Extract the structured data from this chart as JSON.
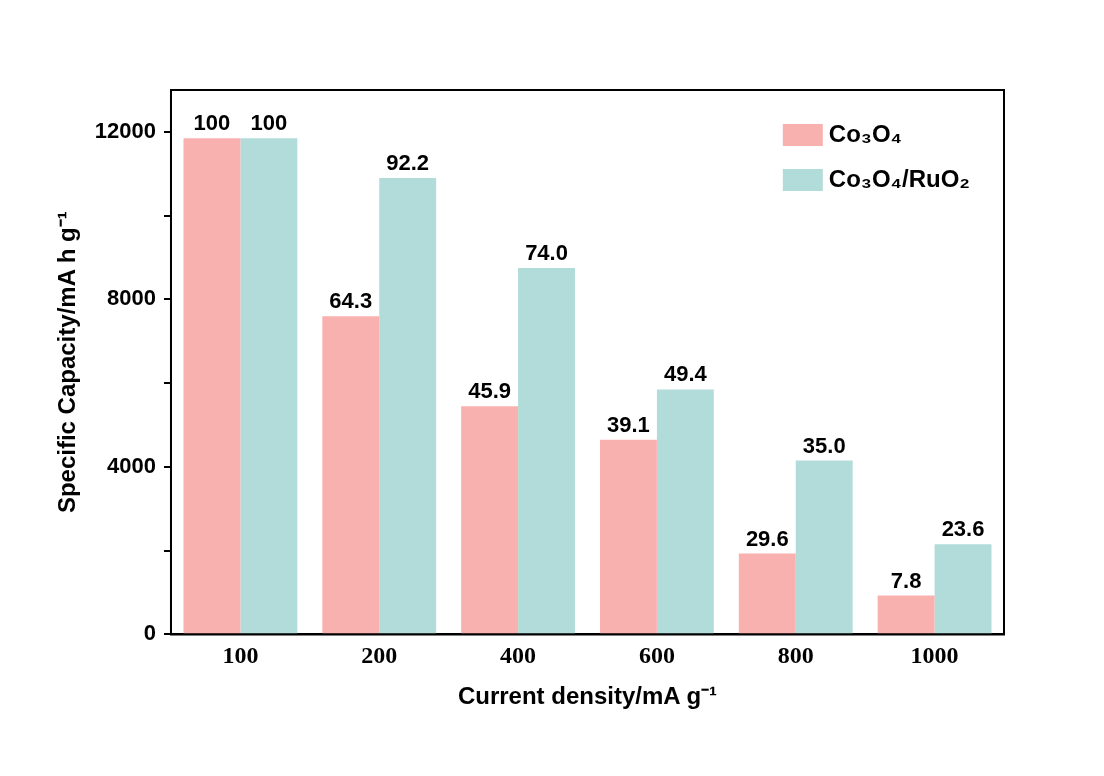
{
  "chart_data": {
    "type": "bar",
    "xlabel": "Current density/mA g⁻¹",
    "ylabel": "Specific Capacity/mA h g⁻¹",
    "categories": [
      "100",
      "200",
      "400",
      "600",
      "800",
      "1000"
    ],
    "series": [
      {
        "name": "Co₃O₄",
        "color": "#f9b1b0",
        "values": [
          11850,
          7600,
          5450,
          4650,
          1930,
          930
        ]
      },
      {
        "name": "Co₃O₄/RuO₂",
        "color": "#b2dcd9",
        "values": [
          11850,
          10900,
          8750,
          5850,
          4150,
          2150
        ]
      }
    ],
    "annotations": [
      {
        "text": "100",
        "x": "100",
        "y": 11850
      },
      {
        "text": "100",
        "x": "100",
        "y": 11850
      },
      {
        "text": "64.3",
        "x": "200",
        "y": 7600
      },
      {
        "text": "92.2",
        "x": "200",
        "y": 10900
      },
      {
        "text": "45.9",
        "x": "400",
        "y": 5450
      },
      {
        "text": "74.0",
        "x": "400",
        "y": 8750
      },
      {
        "text": "39.1",
        "x": "600",
        "y": 4650
      },
      {
        "text": "49.4",
        "x": "600",
        "y": 5850
      },
      {
        "text": "29.6",
        "x": "800",
        "y": 1930
      },
      {
        "text": "35.0",
        "x": "800",
        "y": 4150
      },
      {
        "text": "7.8",
        "x": "1000",
        "y": 930
      },
      {
        "text": "23.6",
        "x": "1000",
        "y": 2150
      }
    ],
    "ylim": [
      0,
      13000
    ],
    "yticks": [
      0,
      {
        "value": 2000,
        "label": null
      },
      4000,
      {
        "value": 6000,
        "label": null
      },
      8000,
      {
        "value": 10000,
        "label": null
      },
      12000
    ],
    "grid": false,
    "legend": "top right"
  }
}
